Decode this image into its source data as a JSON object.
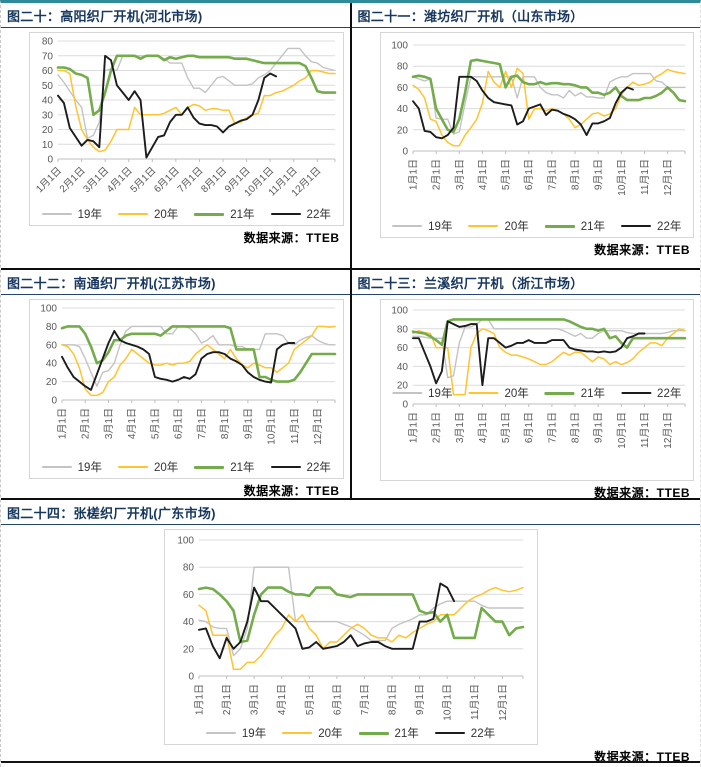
{
  "source_label": "数据来源：TTEB",
  "colors": {
    "y19": "#c3c3c3",
    "y20": "#ffc42e",
    "y21": "#74ac4c",
    "y22": "#1c1c1c",
    "title": "#17375e",
    "top_border": "#2f8a99"
  },
  "legend_labels": [
    "19年",
    "20年",
    "21年",
    "22年"
  ],
  "chart_data": [
    {
      "type": "line",
      "title": "图二十：高阳织厂开机(河北市场)",
      "ylim": [
        0,
        80
      ],
      "ystep": 10,
      "x_labels": [
        "1月1日",
        "2月1日",
        "3月1日",
        "4月1日",
        "5月1日",
        "6月1日",
        "7月1日",
        "8月1日",
        "9月1日",
        "10月1日",
        "11月1日",
        "12月1日"
      ],
      "x_label_rotation": 45,
      "legend_position": "bottom",
      "grid": true,
      "source": "数据来源：TTEB",
      "series": [
        {
          "name": "19年",
          "color": "#c3c3c3",
          "values": [
            57,
            52,
            46,
            40,
            35,
            14,
            16,
            25,
            60,
            61,
            60,
            70,
            70,
            70,
            70,
            70,
            70,
            70,
            68,
            65,
            65,
            65,
            55,
            48,
            48,
            45,
            50,
            55,
            56,
            53,
            50,
            50,
            50,
            51,
            55,
            57,
            60,
            65,
            70,
            75,
            75,
            75,
            70,
            66,
            65,
            62,
            61,
            60
          ]
        },
        {
          "name": "20年",
          "color": "#ffc42e",
          "values": [
            60,
            60,
            58,
            36,
            20,
            13,
            8,
            5,
            6,
            12,
            20,
            20,
            20,
            35,
            30,
            30,
            30,
            30,
            31,
            33,
            35,
            30,
            35,
            37,
            36,
            33,
            34,
            34,
            33,
            33,
            24,
            25,
            28,
            30,
            31,
            43,
            43,
            45,
            46,
            48,
            50,
            53,
            55,
            60,
            60,
            59,
            58,
            58
          ]
        },
        {
          "name": "21年",
          "color": "#74ac4c",
          "values": [
            62,
            62,
            61,
            58,
            57,
            55,
            30,
            33,
            45,
            60,
            70,
            70,
            70,
            70,
            68,
            70,
            70,
            70,
            67,
            69,
            68,
            69,
            70,
            70,
            69,
            69,
            69,
            69,
            69,
            69,
            68,
            68,
            68,
            67,
            66,
            65,
            65,
            65,
            65,
            65,
            65,
            65,
            63,
            55,
            46,
            45,
            45,
            45
          ]
        },
        {
          "name": "22年",
          "color": "#1c1c1c",
          "values": [
            43,
            38,
            21,
            15,
            9,
            13,
            12,
            8,
            70,
            67,
            50,
            45,
            40,
            46,
            40,
            1,
            8,
            15,
            16,
            25,
            30,
            30,
            35,
            28,
            24,
            23,
            23,
            22,
            18,
            22,
            24,
            26,
            27,
            30,
            40,
            55,
            58,
            56
          ]
        }
      ]
    },
    {
      "type": "line",
      "title": "图二十一：潍坊织厂开机（山东市场）",
      "ylim": [
        0,
        100
      ],
      "ystep": 20,
      "x_labels": [
        "1月1日",
        "2月1日",
        "3月1日",
        "4月1日",
        "5月1日",
        "6月1日",
        "7月1日",
        "8月1日",
        "9月1日",
        "10月1日",
        "11月1日",
        "12月1日"
      ],
      "x_label_rotation": 90,
      "legend_position": "bottom",
      "grid": true,
      "source": "数据来源：TTEB",
      "series": [
        {
          "name": "19年",
          "color": "#c3c3c3",
          "values": [
            70,
            68,
            66,
            68,
            31,
            30,
            30,
            16,
            18,
            45,
            70,
            70,
            70,
            70,
            70,
            70,
            70,
            70,
            50,
            70,
            70,
            70,
            60,
            55,
            53,
            53,
            50,
            57,
            52,
            55,
            51,
            51,
            50,
            50,
            65,
            68,
            70,
            70,
            73,
            73,
            73,
            73,
            66,
            65,
            60,
            60,
            60,
            60
          ]
        },
        {
          "name": "20年",
          "color": "#ffc42e",
          "values": [
            62,
            58,
            50,
            30,
            28,
            15,
            8,
            5,
            5,
            15,
            22,
            30,
            45,
            75,
            65,
            60,
            75,
            60,
            78,
            73,
            30,
            40,
            40,
            38,
            40,
            38,
            35,
            30,
            22,
            25,
            30,
            35,
            36,
            33,
            35,
            40,
            53,
            60,
            65,
            62,
            63,
            65,
            70,
            73,
            77,
            75,
            74,
            73
          ]
        },
        {
          "name": "21年",
          "color": "#74ac4c",
          "values": [
            70,
            71,
            70,
            68,
            40,
            30,
            20,
            18,
            30,
            55,
            85,
            86,
            85,
            84,
            83,
            82,
            60,
            70,
            71,
            65,
            63,
            63,
            65,
            63,
            64,
            64,
            63,
            63,
            62,
            60,
            60,
            55,
            55,
            53,
            55,
            60,
            52,
            48,
            48,
            48,
            50,
            50,
            52,
            55,
            60,
            55,
            48,
            47
          ]
        },
        {
          "name": "22年",
          "color": "#1c1c1c",
          "values": [
            47,
            40,
            19,
            18,
            13,
            12,
            15,
            22,
            70,
            70,
            70,
            66,
            57,
            50,
            46,
            45,
            44,
            43,
            25,
            28,
            40,
            42,
            44,
            34,
            39,
            38,
            35,
            33,
            30,
            25,
            15,
            26,
            26,
            28,
            31,
            45,
            55,
            60,
            58
          ]
        }
      ]
    },
    {
      "type": "line",
      "title": "图二十二：南通织厂开机(江苏市场)",
      "ylim": [
        0,
        100
      ],
      "ystep": 20,
      "x_labels": [
        "1月1日",
        "2月1日",
        "3月1日",
        "4月1日",
        "5月1日",
        "6月1日",
        "7月1日",
        "8月1日",
        "9月1日",
        "10月1日",
        "11月1日",
        "12月1日"
      ],
      "x_label_rotation": 90,
      "legend_position": "bottom",
      "grid": true,
      "source": "数据来源：TTEB",
      "series": [
        {
          "name": "19年",
          "color": "#c3c3c3",
          "values": [
            60,
            60,
            60,
            58,
            45,
            30,
            15,
            30,
            32,
            40,
            60,
            75,
            80,
            80,
            80,
            80,
            80,
            80,
            72,
            72,
            80,
            80,
            78,
            72,
            62,
            65,
            70,
            60,
            60,
            60,
            58,
            58,
            55,
            55,
            55,
            72,
            72,
            72,
            70,
            62,
            60,
            65,
            68,
            70,
            65,
            62,
            60,
            60
          ]
        },
        {
          "name": "20年",
          "color": "#ffc42e",
          "values": [
            60,
            58,
            50,
            35,
            12,
            5,
            5,
            8,
            20,
            25,
            38,
            45,
            55,
            50,
            45,
            40,
            38,
            38,
            40,
            38,
            40,
            40,
            42,
            50,
            55,
            60,
            55,
            50,
            45,
            55,
            45,
            38,
            35,
            40,
            38,
            35,
            35,
            30,
            35,
            40,
            55,
            60,
            65,
            70,
            80,
            80,
            79,
            80
          ]
        },
        {
          "name": "21年",
          "color": "#74ac4c",
          "values": [
            78,
            80,
            80,
            80,
            72,
            58,
            40,
            43,
            52,
            65,
            65,
            70,
            72,
            72,
            72,
            72,
            72,
            70,
            75,
            80,
            80,
            80,
            80,
            80,
            80,
            80,
            80,
            80,
            80,
            78,
            55,
            55,
            55,
            55,
            25,
            25,
            22,
            20,
            20,
            20,
            22,
            30,
            40,
            50,
            50,
            50,
            50,
            50
          ]
        },
        {
          "name": "22年",
          "color": "#1c1c1c",
          "values": [
            47,
            35,
            25,
            20,
            15,
            11,
            28,
            45,
            62,
            75,
            65,
            62,
            60,
            58,
            55,
            50,
            25,
            23,
            22,
            20,
            22,
            25,
            23,
            28,
            45,
            50,
            52,
            52,
            50,
            45,
            42,
            38,
            30,
            25,
            22,
            20,
            19,
            55,
            60,
            62,
            62
          ]
        }
      ]
    },
    {
      "type": "line",
      "title": "图二十三：兰溪织厂开机（浙江市场）",
      "ylim": [
        0,
        100
      ],
      "ystep": 20,
      "x_labels": [
        "1月1日",
        "2月1日",
        "3月1日",
        "4月1日",
        "5月1日",
        "6月1日",
        "7月1日",
        "8月1日",
        "9月1日",
        "10月1日",
        "11月1日",
        "12月1日"
      ],
      "x_label_rotation": 90,
      "legend_position": "inside-bottom",
      "grid": true,
      "source": "数据来源：TTEB",
      "series": [
        {
          "name": "19年",
          "color": "#c3c3c3",
          "values": [
            72,
            72,
            71,
            70,
            70,
            70,
            28,
            30,
            65,
            82,
            82,
            85,
            90,
            90,
            80,
            80,
            80,
            80,
            80,
            80,
            80,
            80,
            80,
            80,
            80,
            80,
            78,
            75,
            72,
            75,
            70,
            70,
            75,
            78,
            78,
            78,
            78,
            76,
            75,
            75,
            75,
            75,
            75,
            75,
            76,
            78,
            78,
            78
          ]
        },
        {
          "name": "20年",
          "color": "#ffc42e",
          "values": [
            75,
            78,
            76,
            75,
            60,
            60,
            60,
            10,
            10,
            10,
            60,
            75,
            80,
            78,
            75,
            60,
            55,
            52,
            52,
            50,
            48,
            45,
            42,
            42,
            45,
            50,
            55,
            52,
            55,
            55,
            50,
            45,
            50,
            48,
            42,
            45,
            42,
            44,
            48,
            55,
            60,
            65,
            65,
            62,
            70,
            75,
            80,
            78
          ]
        },
        {
          "name": "21年",
          "color": "#74ac4c",
          "values": [
            77,
            76,
            75,
            72,
            68,
            63,
            88,
            90,
            90,
            90,
            90,
            90,
            90,
            90,
            90,
            90,
            90,
            90,
            90,
            90,
            90,
            90,
            90,
            90,
            90,
            90,
            90,
            88,
            85,
            82,
            80,
            80,
            78,
            80,
            70,
            72,
            65,
            60,
            70,
            70,
            70,
            70,
            70,
            70,
            70,
            70,
            70,
            70
          ]
        },
        {
          "name": "22年",
          "color": "#1c1c1c",
          "values": [
            70,
            70,
            55,
            40,
            22,
            35,
            88,
            85,
            82,
            83,
            85,
            85,
            20,
            70,
            70,
            65,
            60,
            62,
            65,
            65,
            68,
            65,
            65,
            65,
            68,
            68,
            68,
            60,
            58,
            57,
            56,
            56,
            55,
            56,
            55,
            56,
            60,
            70,
            72,
            75,
            75
          ]
        }
      ]
    },
    {
      "type": "line",
      "title": "图二十四：张槎织厂开机(广东市场)",
      "ylim": [
        0,
        100
      ],
      "ystep": 20,
      "x_labels": [
        "1月1日",
        "2月1日",
        "3月1日",
        "4月1日",
        "5月1日",
        "6月1日",
        "7月1日",
        "8月1日",
        "9月1日",
        "10月1日",
        "11月1日",
        "12月1日"
      ],
      "x_label_rotation": 90,
      "legend_position": "bottom",
      "grid": true,
      "source": "数据来源：TTEB",
      "series": [
        {
          "name": "19年",
          "color": "#c3c3c3",
          "values": [
            41,
            40,
            36,
            35,
            35,
            15,
            20,
            35,
            80,
            80,
            80,
            80,
            80,
            80,
            40,
            40,
            40,
            40,
            40,
            40,
            40,
            38,
            36,
            33,
            30,
            26,
            26,
            26,
            35,
            38,
            40,
            42,
            45,
            45,
            50,
            53,
            55,
            55,
            55,
            55,
            55,
            52,
            50,
            50,
            50,
            50,
            50,
            50
          ]
        },
        {
          "name": "20年",
          "color": "#ffc42e",
          "values": [
            52,
            48,
            30,
            30,
            30,
            5,
            5,
            10,
            10,
            15,
            22,
            30,
            35,
            45,
            40,
            45,
            35,
            30,
            20,
            25,
            25,
            30,
            35,
            38,
            35,
            30,
            28,
            28,
            25,
            30,
            28,
            32,
            35,
            38,
            40,
            45,
            45,
            45,
            50,
            55,
            58,
            60,
            63,
            65,
            63,
            62,
            63,
            65
          ]
        },
        {
          "name": "21年",
          "color": "#74ac4c",
          "values": [
            64,
            65,
            64,
            60,
            55,
            48,
            25,
            26,
            45,
            60,
            65,
            65,
            65,
            62,
            60,
            60,
            59,
            65,
            65,
            65,
            60,
            59,
            58,
            60,
            60,
            60,
            60,
            60,
            60,
            60,
            60,
            60,
            48,
            46,
            47,
            40,
            45,
            28,
            28,
            28,
            28,
            50,
            45,
            40,
            40,
            30,
            35,
            36
          ]
        },
        {
          "name": "22年",
          "color": "#1c1c1c",
          "values": [
            34,
            35,
            22,
            13,
            28,
            20,
            25,
            40,
            65,
            55,
            55,
            50,
            45,
            40,
            35,
            20,
            21,
            25,
            20,
            21,
            22,
            25,
            30,
            22,
            24,
            25,
            25,
            22,
            20,
            20,
            20,
            20,
            40,
            40,
            42,
            68,
            65,
            55
          ]
        }
      ]
    }
  ]
}
